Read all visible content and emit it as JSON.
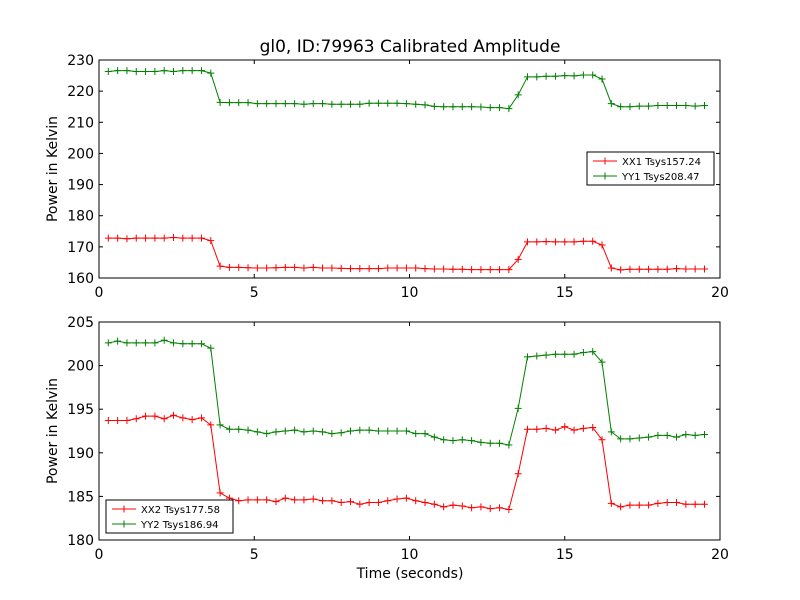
{
  "figure": {
    "title": "gl0, ID:79963 Calibrated Amplitude",
    "xlabel": "Time (seconds)"
  },
  "chart_data": [
    {
      "type": "line",
      "title": "gl0, ID:79963 Calibrated Amplitude",
      "xlabel": "",
      "ylabel": "Power in Kelvin",
      "xlim": [
        0,
        20
      ],
      "ylim": [
        160,
        230
      ],
      "xticks": [
        0,
        5,
        10,
        15,
        20
      ],
      "yticks": [
        160,
        170,
        180,
        190,
        200,
        210,
        220,
        230
      ],
      "grid": false,
      "legend_position": "center-right",
      "x": [
        0.3,
        0.6,
        0.9,
        1.2,
        1.5,
        1.8,
        2.1,
        2.4,
        2.7,
        3.0,
        3.3,
        3.6,
        3.9,
        4.2,
        4.5,
        4.8,
        5.1,
        5.4,
        5.7,
        6.0,
        6.3,
        6.6,
        6.9,
        7.2,
        7.5,
        7.8,
        8.1,
        8.4,
        8.7,
        9.0,
        9.3,
        9.6,
        9.9,
        10.2,
        10.5,
        10.8,
        11.1,
        11.4,
        11.7,
        12.0,
        12.3,
        12.6,
        12.9,
        13.2,
        13.5,
        13.8,
        14.1,
        14.4,
        14.7,
        15.0,
        15.3,
        15.6,
        15.9,
        16.2,
        16.5,
        16.8,
        17.1,
        17.4,
        17.7,
        18.0,
        18.3,
        18.6,
        18.9,
        19.2,
        19.5
      ],
      "series": [
        {
          "name": "XX1 Tsys157.24",
          "color": "#ff0000",
          "values": [
            172.8,
            172.8,
            172.6,
            172.8,
            172.8,
            172.8,
            172.8,
            173.0,
            172.8,
            172.8,
            172.8,
            172.0,
            163.8,
            163.4,
            163.4,
            163.3,
            163.2,
            163.2,
            163.3,
            163.4,
            163.4,
            163.2,
            163.4,
            163.2,
            163.2,
            163.1,
            163.0,
            163.0,
            163.0,
            163.0,
            163.2,
            163.2,
            163.2,
            163.2,
            163.0,
            162.9,
            162.9,
            162.8,
            162.8,
            162.7,
            162.7,
            162.7,
            162.7,
            162.7,
            166.0,
            171.6,
            171.6,
            171.7,
            171.6,
            171.6,
            171.6,
            171.8,
            171.8,
            170.6,
            163.2,
            162.6,
            162.8,
            162.8,
            162.8,
            162.8,
            162.8,
            163.0,
            162.9,
            162.9,
            162.9
          ]
        },
        {
          "name": "YY1 Tsys208.47",
          "color": "#008000",
          "values": [
            226.3,
            226.6,
            226.6,
            226.3,
            226.3,
            226.3,
            226.6,
            226.3,
            226.6,
            226.6,
            226.6,
            225.8,
            216.4,
            216.3,
            216.3,
            216.3,
            216.0,
            216.0,
            216.0,
            216.0,
            216.0,
            215.8,
            216.0,
            216.0,
            215.8,
            215.8,
            215.8,
            215.8,
            216.1,
            216.1,
            216.1,
            216.1,
            216.0,
            215.8,
            215.6,
            215.1,
            215.0,
            215.0,
            215.0,
            215.0,
            214.9,
            214.7,
            214.7,
            214.4,
            218.8,
            224.6,
            224.6,
            224.8,
            224.8,
            225.0,
            224.9,
            225.2,
            225.2,
            223.9,
            216.0,
            215.0,
            215.0,
            215.2,
            215.2,
            215.4,
            215.4,
            215.4,
            215.4,
            215.2,
            215.4
          ]
        }
      ]
    },
    {
      "type": "line",
      "title": "",
      "xlabel": "Time (seconds)",
      "ylabel": "Power in Kelvin",
      "xlim": [
        0,
        20
      ],
      "ylim": [
        180,
        205
      ],
      "xticks": [
        0,
        5,
        10,
        15,
        20
      ],
      "yticks": [
        180,
        185,
        190,
        195,
        200,
        205
      ],
      "grid": false,
      "legend_position": "lower-left",
      "x": [
        0.3,
        0.6,
        0.9,
        1.2,
        1.5,
        1.8,
        2.1,
        2.4,
        2.7,
        3.0,
        3.3,
        3.6,
        3.9,
        4.2,
        4.5,
        4.8,
        5.1,
        5.4,
        5.7,
        6.0,
        6.3,
        6.6,
        6.9,
        7.2,
        7.5,
        7.8,
        8.1,
        8.4,
        8.7,
        9.0,
        9.3,
        9.6,
        9.9,
        10.2,
        10.5,
        10.8,
        11.1,
        11.4,
        11.7,
        12.0,
        12.3,
        12.6,
        12.9,
        13.2,
        13.5,
        13.8,
        14.1,
        14.4,
        14.7,
        15.0,
        15.3,
        15.6,
        15.9,
        16.2,
        16.5,
        16.8,
        17.1,
        17.4,
        17.7,
        18.0,
        18.3,
        18.6,
        18.9,
        19.2,
        19.5
      ],
      "series": [
        {
          "name": "XX2 Tsys177.58",
          "color": "#ff0000",
          "values": [
            193.7,
            193.7,
            193.7,
            193.9,
            194.2,
            194.2,
            193.9,
            194.3,
            194.0,
            193.8,
            194.0,
            193.2,
            185.4,
            184.8,
            184.5,
            184.6,
            184.6,
            184.6,
            184.4,
            184.8,
            184.6,
            184.6,
            184.7,
            184.5,
            184.5,
            184.3,
            184.4,
            184.1,
            184.3,
            184.3,
            184.5,
            184.7,
            184.8,
            184.5,
            184.3,
            184.1,
            183.8,
            184.0,
            183.9,
            183.7,
            183.8,
            183.6,
            183.7,
            183.5,
            187.6,
            192.7,
            192.7,
            192.8,
            192.6,
            193.0,
            192.6,
            192.8,
            192.9,
            191.5,
            184.2,
            183.8,
            184.0,
            184.0,
            184.0,
            184.2,
            184.3,
            184.3,
            184.1,
            184.1,
            184.1
          ]
        },
        {
          "name": "YY2 Tsys186.94",
          "color": "#008000",
          "values": [
            202.6,
            202.8,
            202.6,
            202.6,
            202.6,
            202.6,
            202.9,
            202.6,
            202.5,
            202.5,
            202.5,
            202.0,
            193.2,
            192.7,
            192.7,
            192.6,
            192.4,
            192.2,
            192.4,
            192.5,
            192.6,
            192.4,
            192.5,
            192.4,
            192.2,
            192.3,
            192.5,
            192.6,
            192.6,
            192.5,
            192.5,
            192.5,
            192.5,
            192.2,
            192.2,
            191.8,
            191.5,
            191.4,
            191.5,
            191.4,
            191.2,
            191.1,
            191.1,
            190.9,
            195.1,
            201.0,
            201.1,
            201.2,
            201.3,
            201.3,
            201.3,
            201.5,
            201.6,
            200.4,
            192.4,
            191.6,
            191.6,
            191.7,
            191.8,
            192.0,
            192.0,
            191.8,
            192.1,
            192.0,
            192.1
          ]
        }
      ]
    }
  ]
}
